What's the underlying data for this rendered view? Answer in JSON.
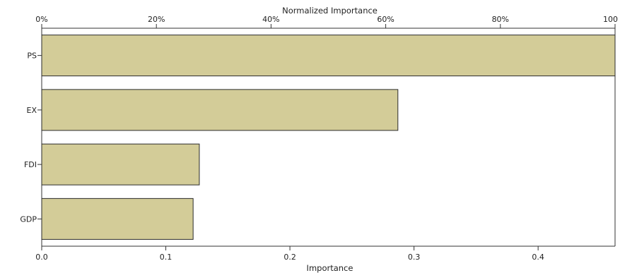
{
  "chart_data": {
    "type": "bar",
    "orientation": "horizontal",
    "categories": [
      "PS",
      "EX",
      "FDI",
      "GDP"
    ],
    "values": [
      0.462,
      0.287,
      0.127,
      0.122
    ],
    "top_axis": {
      "label": "Normalized Importance",
      "ticks": [
        "0%",
        "20%",
        "40%",
        "60%",
        "80%",
        "100"
      ],
      "range": [
        0,
        100
      ]
    },
    "bottom_axis": {
      "label": "Importance",
      "ticks": [
        "0.0",
        "0.1",
        "0.2",
        "0.3",
        "0.4"
      ],
      "tick_values": [
        0,
        0.1,
        0.2,
        0.3,
        0.4
      ],
      "range": [
        0,
        0.462
      ]
    },
    "bar_color": "#d3cc98",
    "bar_outline_color": "#2b2b2b",
    "grid": false,
    "legend": "none"
  }
}
